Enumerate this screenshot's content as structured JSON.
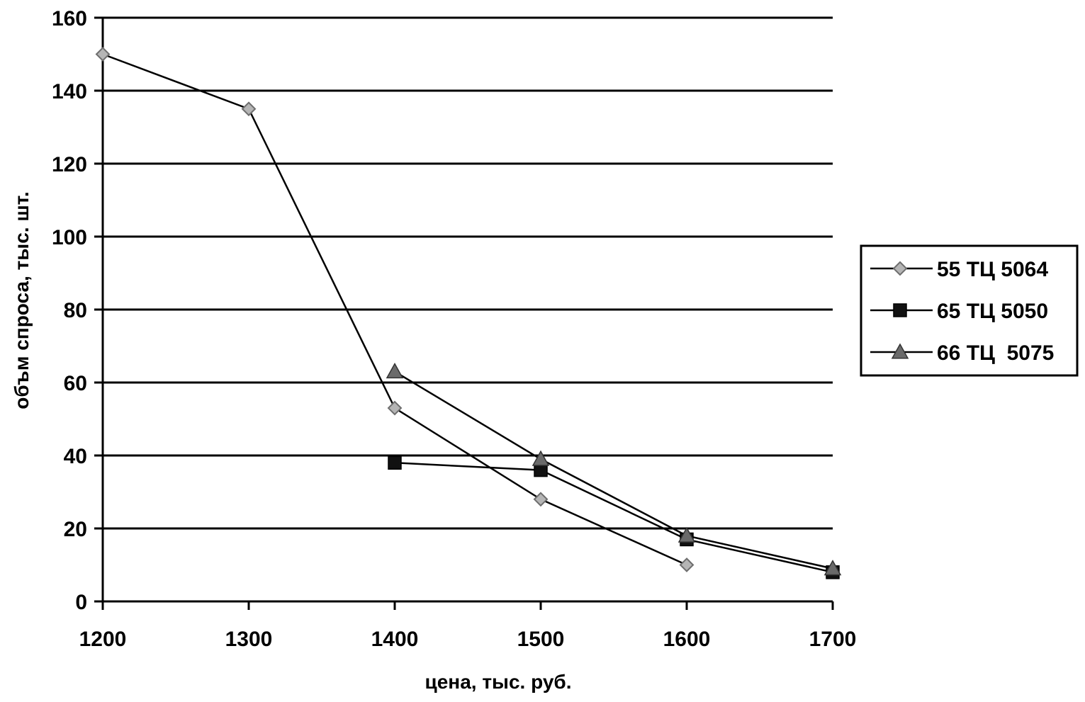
{
  "chart_data": {
    "type": "line",
    "xlabel": "цена, тыс. руб.",
    "ylabel": "объм спроса, тыс. шт.",
    "xlim": [
      1200,
      1700
    ],
    "ylim": [
      0,
      160
    ],
    "x_ticks": [
      "1200",
      "1300",
      "1400",
      "1500",
      "1600",
      "1700"
    ],
    "y_ticks": [
      "0",
      "20",
      "40",
      "60",
      "80",
      "100",
      "120",
      "140",
      "160"
    ],
    "grid": "horizontal",
    "legend_position": "right",
    "series": [
      {
        "name": "55 ТЦ 5064",
        "marker": "diamond",
        "color": "#8a8a8a",
        "x": [
          1200,
          1300,
          1400,
          1500,
          1600
        ],
        "y": [
          150,
          135,
          53,
          28,
          10
        ]
      },
      {
        "name": "65 ТЦ 5050",
        "marker": "square",
        "color": "#111111",
        "x": [
          1400,
          1500,
          1600,
          1700
        ],
        "y": [
          38,
          36,
          17,
          8
        ]
      },
      {
        "name": "66 ТЦ  5075",
        "marker": "triangle",
        "color": "#555555",
        "x": [
          1400,
          1500,
          1600,
          1700
        ],
        "y": [
          63,
          39,
          18,
          9
        ]
      }
    ]
  }
}
